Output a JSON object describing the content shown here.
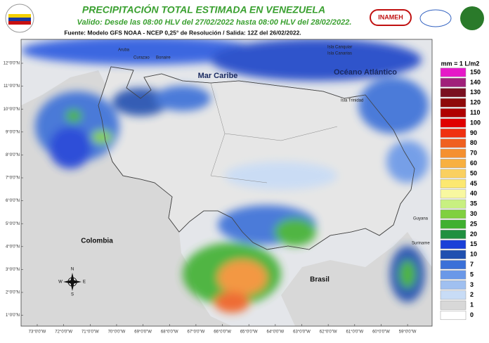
{
  "header": {
    "title": "PRECIPITACIÓN TOTAL ESTIMADA EN VENEZUELA",
    "subtitle": "Valido: Desde las 08:00 HLV del 27/02/2022 hasta 08:00 HLV del 28/02/2022.",
    "source": "Fuente: Modelo GFS NOAA - NCEP 0,25° de Resolución / Salida: 12Z del 26/02/2022.",
    "logo": "INAMEH"
  },
  "map": {
    "lat_labels": [
      "12°0'0\"N",
      "11°0'0\"N",
      "10°0'0\"N",
      "9°0'0\"N",
      "8°0'0\"N",
      "7°0'0\"N",
      "6°0'0\"N",
      "5°0'0\"N",
      "4°0'0\"N",
      "3°0'0\"N",
      "2°0'0\"N",
      "1°0'0\"N"
    ],
    "lon_labels": [
      "73°0'0\"W",
      "72°0'0\"W",
      "71°0'0\"W",
      "70°0'0\"W",
      "69°0'0\"W",
      "68°0'0\"W",
      "67°0'0\"W",
      "66°0'0\"W",
      "65°0'0\"W",
      "64°0'0\"W",
      "63°0'0\"W",
      "62°0'0\"W",
      "61°0'0\"W",
      "60°0'0\"W",
      "59°0'0\"W"
    ],
    "place_labels": [
      "Aruba",
      "Curazao",
      "Bonaire",
      "Mar Caribe",
      "Océano Atlántico",
      "Isla Trinidad",
      "Colombia",
      "Brasil",
      "Guyana",
      "Suriname",
      "Isla Canquiar",
      "Isla Canarias"
    ],
    "compass": [
      "N",
      "S",
      "E",
      "W"
    ]
  },
  "legend": {
    "title": "mm = 1 L/m2",
    "entries": [
      {
        "label": 150,
        "color": "#e619c8"
      },
      {
        "label": 140,
        "color": "#a0207a"
      },
      {
        "label": 130,
        "color": "#7a1020"
      },
      {
        "label": 120,
        "color": "#8f0a0a"
      },
      {
        "label": 110,
        "color": "#b00000"
      },
      {
        "label": 100,
        "color": "#e00000"
      },
      {
        "label": 90,
        "color": "#f03010"
      },
      {
        "label": 80,
        "color": "#f06020"
      },
      {
        "label": 70,
        "color": "#f59030"
      },
      {
        "label": 60,
        "color": "#f8b040"
      },
      {
        "label": 50,
        "color": "#fad060"
      },
      {
        "label": 45,
        "color": "#fce870"
      },
      {
        "label": 40,
        "color": "#f8f8a0"
      },
      {
        "label": 35,
        "color": "#c8f080"
      },
      {
        "label": 30,
        "color": "#80d040"
      },
      {
        "label": 25,
        "color": "#40b030"
      },
      {
        "label": 20,
        "color": "#209040"
      },
      {
        "label": 15,
        "color": "#1a40d8"
      },
      {
        "label": 10,
        "color": "#2050b0"
      },
      {
        "label": 7,
        "color": "#3a70d8"
      },
      {
        "label": 5,
        "color": "#6a98e8"
      },
      {
        "label": 3,
        "color": "#a0c0f0"
      },
      {
        "label": 2,
        "color": "#c8dcf6"
      },
      {
        "label": 1,
        "color": "#d8d8d8"
      },
      {
        "label": 0,
        "color": "#ffffff"
      }
    ]
  }
}
